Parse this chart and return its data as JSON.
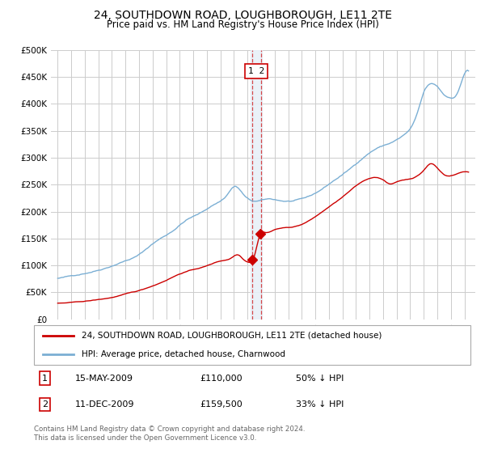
{
  "title": "24, SOUTHDOWN ROAD, LOUGHBOROUGH, LE11 2TE",
  "subtitle": "Price paid vs. HM Land Registry's House Price Index (HPI)",
  "legend_line1": "24, SOUTHDOWN ROAD, LOUGHBOROUGH, LE11 2TE (detached house)",
  "legend_line2": "HPI: Average price, detached house, Charnwood",
  "transaction1_label": "1",
  "transaction1_date": "15-MAY-2009",
  "transaction1_price": "£110,000",
  "transaction1_pct": "50% ↓ HPI",
  "transaction2_label": "2",
  "transaction2_date": "11-DEC-2009",
  "transaction2_price": "£159,500",
  "transaction2_pct": "33% ↓ HPI",
  "footnote": "Contains HM Land Registry data © Crown copyright and database right 2024.\nThis data is licensed under the Open Government Licence v3.0.",
  "ylim": [
    0,
    500000
  ],
  "yticks": [
    0,
    50000,
    100000,
    150000,
    200000,
    250000,
    300000,
    350000,
    400000,
    450000,
    500000
  ],
  "property_color": "#cc0000",
  "hpi_color": "#7bafd4",
  "vline_color": "#cc0000",
  "vshade_color": "#e8f0f8",
  "background_color": "#ffffff",
  "grid_color": "#cccccc",
  "sale1_year": 2009.37,
  "sale1_price": 110000,
  "sale2_year": 2009.94,
  "sale2_price": 159500,
  "xlim_left": 1994.5,
  "xlim_right": 2025.8
}
